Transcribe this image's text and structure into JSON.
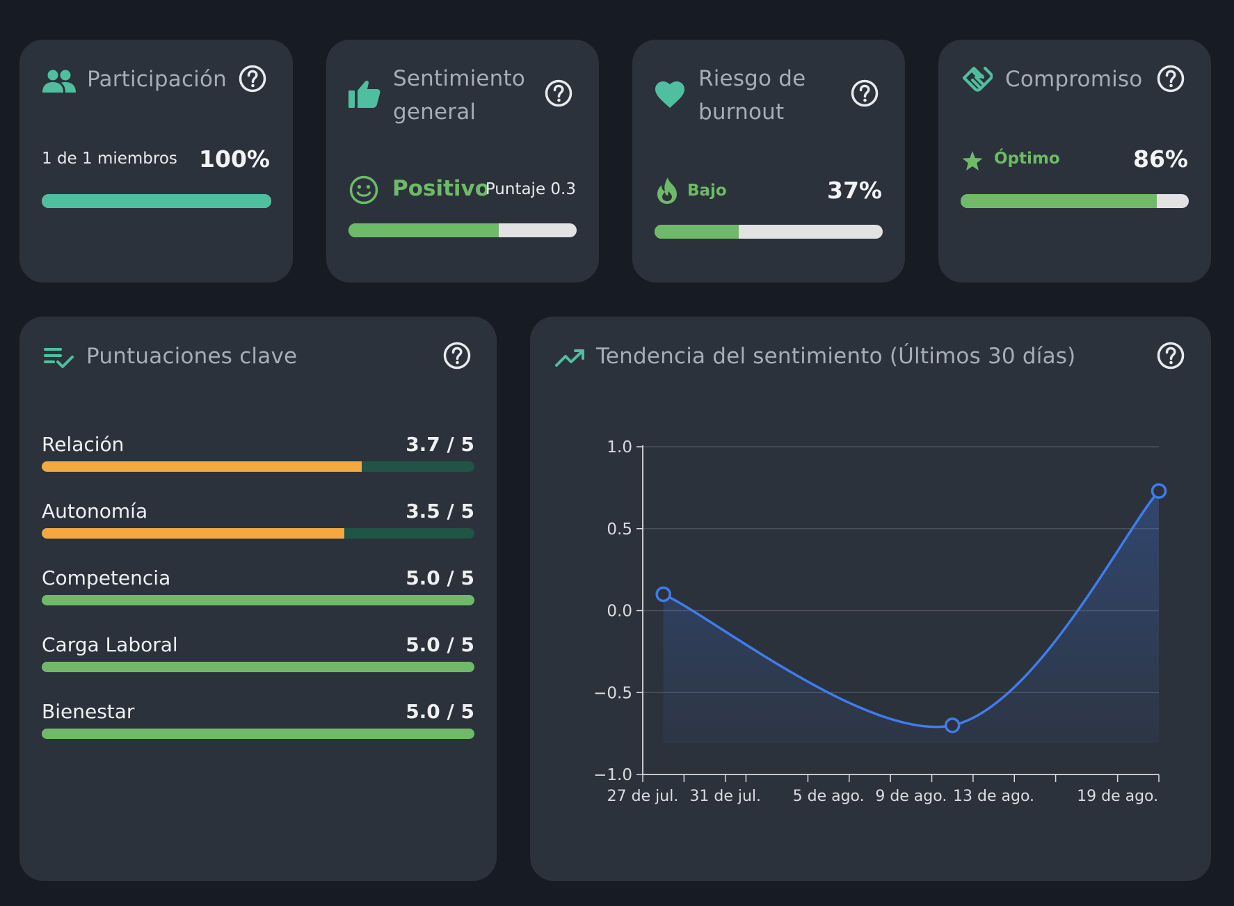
{
  "colors": {
    "background": "#171c24",
    "card": "#2c323c",
    "teal": "#4fbf9f",
    "green": "#6fba68",
    "orange": "#f5a83f",
    "blue": "#3f7cf0",
    "track_light": "#e2e2e2",
    "track_dark": "#1f5447"
  },
  "participation": {
    "title": "Participación",
    "icon": "people-icon",
    "members_text": "1 de 1 miembros",
    "percent_text": "100%",
    "progress": 1.0
  },
  "sentiment": {
    "title_line1": "Sentimiento",
    "title_line2": "general",
    "icon": "thumbs-up-icon",
    "status_icon": "smiley-icon",
    "status": "Positivo",
    "score_text": "Puntaje 0.3",
    "progress": 0.66
  },
  "burnout": {
    "title_line1": "Riesgo de",
    "title_line2": "burnout",
    "icon": "heart-icon",
    "status_icon": "flame-icon",
    "status": "Bajo",
    "percent_text": "37%",
    "progress": 0.37
  },
  "commitment": {
    "title": "Compromiso",
    "icon": "handshake-icon",
    "status_icon": "star-icon",
    "status": "Óptimo",
    "percent_text": "86%",
    "progress": 0.86
  },
  "key_scores": {
    "title": "Puntuaciones clave",
    "icon": "checklist-icon",
    "items": [
      {
        "label": "Relación",
        "value_text": "3.7 / 5",
        "value": 3.7,
        "max": 5,
        "color": "#f5a83f"
      },
      {
        "label": "Autonomía",
        "value_text": "3.5 / 5",
        "value": 3.5,
        "max": 5,
        "color": "#f5a83f"
      },
      {
        "label": "Competencia",
        "value_text": "5.0 / 5",
        "value": 5.0,
        "max": 5,
        "color": "#6fba68"
      },
      {
        "label": "Carga Laboral",
        "value_text": "5.0 / 5",
        "value": 5.0,
        "max": 5,
        "color": "#6fba68"
      },
      {
        "label": "Bienestar",
        "value_text": "5.0 / 5",
        "value": 5.0,
        "max": 5,
        "color": "#6fba68"
      }
    ]
  },
  "trend": {
    "title": "Tendencia del sentimiento (Últimos 30 días)",
    "icon": "trending-up-icon"
  },
  "chart_data": {
    "type": "line",
    "title": "Tendencia del sentimiento (Últimos 30 días)",
    "xlabel": "",
    "ylabel": "",
    "ylim": [
      -1.0,
      1.0
    ],
    "yticks": [
      1.0,
      0.5,
      0.0,
      -0.5,
      -1.0
    ],
    "ytick_labels": [
      "1.0",
      "0.5",
      "0.0",
      "−0.5",
      "−1.0"
    ],
    "xlim_days": [
      0,
      25
    ],
    "xtick_days": [
      0,
      2,
      4,
      5,
      8,
      10,
      12,
      14,
      16,
      18,
      20,
      23,
      25
    ],
    "xtick_labels": [
      {
        "day": 0,
        "label": "27 de jul."
      },
      {
        "day": 4,
        "label": "31 de jul."
      },
      {
        "day": 9,
        "label": "5 de ago."
      },
      {
        "day": 13,
        "label": "9 de ago."
      },
      {
        "day": 17,
        "label": "13 de ago."
      },
      {
        "day": 23,
        "label": "19 de ago."
      }
    ],
    "series": [
      {
        "name": "Sentimiento",
        "color": "#3f7cf0",
        "points": [
          {
            "day": 1,
            "value": 0.1
          },
          {
            "day": 15,
            "value": -0.7
          },
          {
            "day": 25,
            "value": 0.73
          }
        ]
      }
    ]
  }
}
